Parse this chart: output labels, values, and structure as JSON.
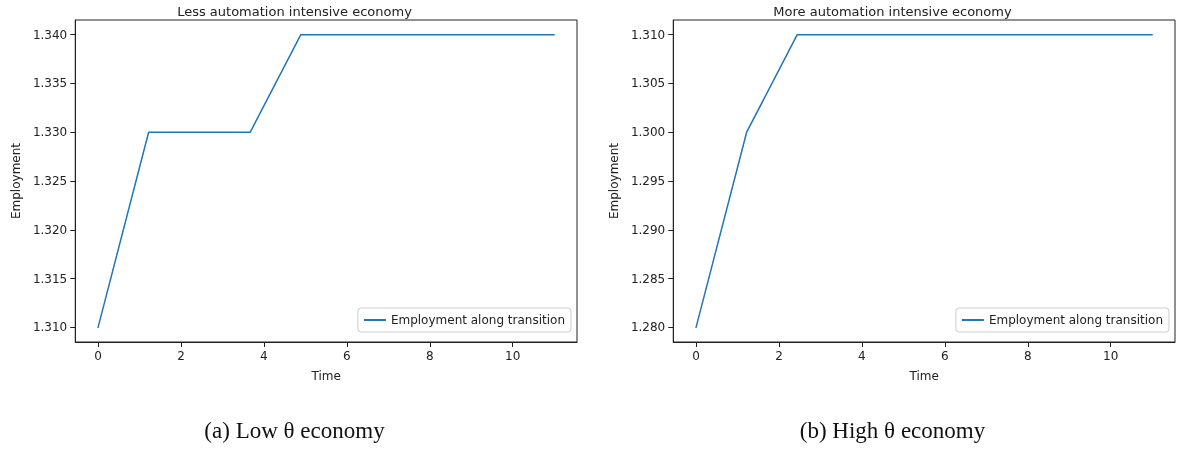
{
  "chart_data": [
    {
      "type": "line",
      "title": "Less automation intensive economy",
      "xlabel": "Time",
      "ylabel": "Employment",
      "annotations": [
        "(a) Low θ economy"
      ],
      "x": [
        0,
        1.22,
        3.67,
        4.89,
        11
      ],
      "series": [
        {
          "name": "Employment along transition",
          "color": "#1f77b4",
          "values": [
            1.31,
            1.33,
            1.33,
            1.34,
            1.34
          ]
        }
      ],
      "xlim": [
        -0.55,
        11.55
      ],
      "xticks": [
        0,
        2,
        4,
        6,
        8,
        10
      ],
      "ylim": [
        1.3085,
        1.3415
      ],
      "yticks": [
        {
          "value": 1.31,
          "label": "1.310"
        },
        {
          "value": 1.315,
          "label": "1.315"
        },
        {
          "value": 1.32,
          "label": "1.320"
        },
        {
          "value": 1.325,
          "label": "1.325"
        },
        {
          "value": 1.33,
          "label": "1.330"
        },
        {
          "value": 1.335,
          "label": "1.335"
        },
        {
          "value": 1.34,
          "label": "1.340"
        }
      ],
      "grid": false,
      "legend": "bottom right",
      "marker": "none",
      "line_style": "solid"
    },
    {
      "type": "line",
      "title": "More automation intensive economy",
      "xlabel": "Time",
      "ylabel": "Employment",
      "annotations": [
        "(b) High θ economy"
      ],
      "x": [
        0,
        1.22,
        2.44,
        11
      ],
      "series": [
        {
          "name": "Employment along transition",
          "color": "#1f77b4",
          "values": [
            1.28,
            1.3,
            1.31,
            1.31
          ]
        }
      ],
      "xlim": [
        -0.55,
        11.55
      ],
      "xticks": [
        0,
        2,
        4,
        6,
        8,
        10
      ],
      "ylim": [
        1.2785,
        1.3115
      ],
      "yticks": [
        {
          "value": 1.28,
          "label": "1.280"
        },
        {
          "value": 1.285,
          "label": "1.285"
        },
        {
          "value": 1.29,
          "label": "1.290"
        },
        {
          "value": 1.295,
          "label": "1.295"
        },
        {
          "value": 1.3,
          "label": "1.300"
        },
        {
          "value": 1.305,
          "label": "1.305"
        },
        {
          "value": 1.31,
          "label": "1.310"
        }
      ],
      "grid": false,
      "legend": "bottom right",
      "marker": "none",
      "line_style": "solid"
    }
  ]
}
